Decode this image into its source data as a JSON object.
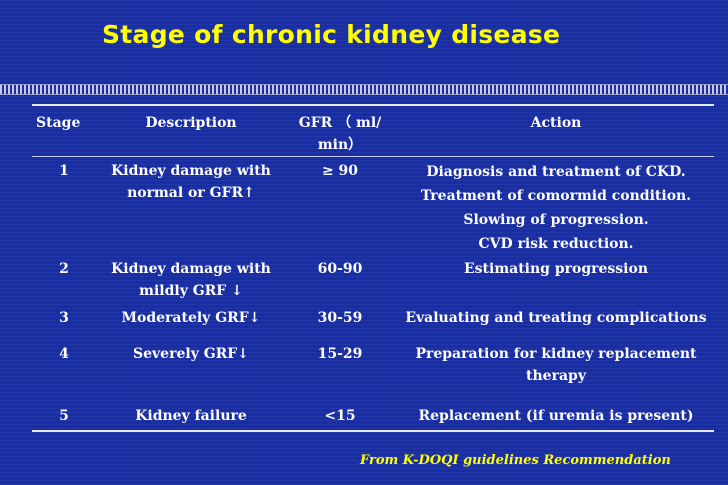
{
  "title": "Stage of chronic kidney disease",
  "table": {
    "headers": {
      "stage": "Stage",
      "description": "Description",
      "gfr_line1": "GFR （ ml/",
      "gfr_line2": "min）",
      "action": "Action"
    },
    "rows": [
      {
        "stage": "1",
        "description": [
          "Kidney damage with",
          "normal or GFR↑"
        ],
        "gfr": "≥ 90",
        "action": [
          "Diagnosis and treatment of CKD.",
          "Treatment of comormid condition.",
          "Slowing of progression.",
          "CVD risk reduction."
        ]
      },
      {
        "stage": "2",
        "description": [
          "Kidney damage with",
          "mildly GRF ↓"
        ],
        "gfr": "60-90",
        "action": [
          "Estimating progression"
        ]
      },
      {
        "stage": "3",
        "description": [
          "Moderately GRF↓"
        ],
        "gfr": "30-59",
        "action": [
          "Evaluating and treating complications"
        ]
      },
      {
        "stage": "4",
        "description": [
          "Severely GRF↓"
        ],
        "gfr": "15-29",
        "action": [
          "Preparation for kidney replacement",
          "therapy"
        ]
      },
      {
        "stage": "5",
        "description": [
          "Kidney failure"
        ],
        "gfr": "<15",
        "action": [
          "Replacement (if uremia is present)"
        ]
      }
    ]
  },
  "footnote": "From K-DOQI guidelines Recommendation"
}
